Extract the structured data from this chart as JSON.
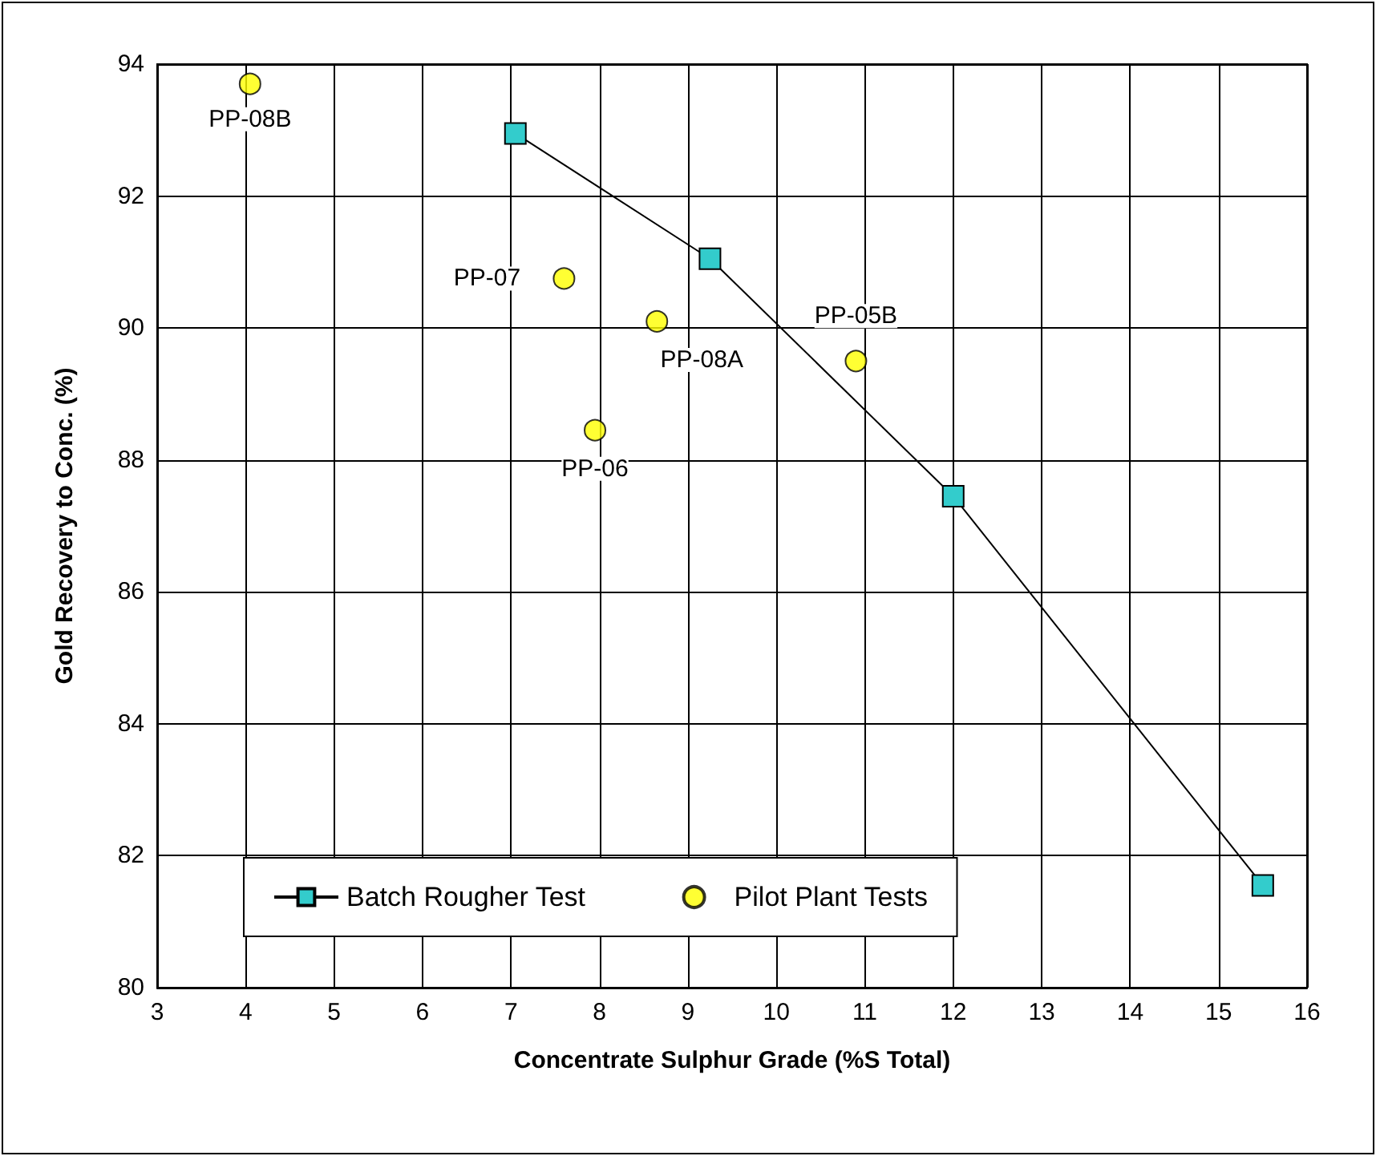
{
  "chart_data": {
    "type": "scatter",
    "xlabel": "Concentrate Sulphur Grade (%S Total)",
    "ylabel": "Gold Recovery to Conc. (%)",
    "xlim": [
      3,
      16
    ],
    "xticks": [
      3,
      4,
      5,
      6,
      7,
      8,
      9,
      10,
      11,
      12,
      13,
      14,
      15,
      16
    ],
    "ylim": [
      80,
      94
    ],
    "yticks": [
      80,
      82,
      84,
      86,
      88,
      90,
      92,
      94
    ],
    "grid": true,
    "legend": "bottom left",
    "series": [
      {
        "name": "Batch Rougher Test",
        "type": "line",
        "marker": "square",
        "color": "#33cccc",
        "x": [
          7.05,
          9.25,
          12.0,
          15.5
        ],
        "values": [
          92.95,
          91.05,
          87.45,
          81.55
        ]
      },
      {
        "name": "Pilot Plant Tests",
        "marker": "circle",
        "color": "#ffff00",
        "x": [
          4.05,
          7.6,
          8.65,
          7.95,
          10.9
        ],
        "values": [
          93.7,
          90.75,
          90.1,
          88.45,
          89.5
        ]
      }
    ],
    "annotations": [
      {
        "text": "PP-08B",
        "x": 4.05,
        "y": 93.7
      },
      {
        "text": "PP-07",
        "x": 7.6,
        "y": 90.75
      },
      {
        "text": "PP-08A",
        "x": 8.65,
        "y": 90.1
      },
      {
        "text": "PP-06",
        "x": 7.95,
        "y": 88.45
      },
      {
        "text": "PP-05B",
        "x": 10.9,
        "y": 89.5
      }
    ]
  }
}
